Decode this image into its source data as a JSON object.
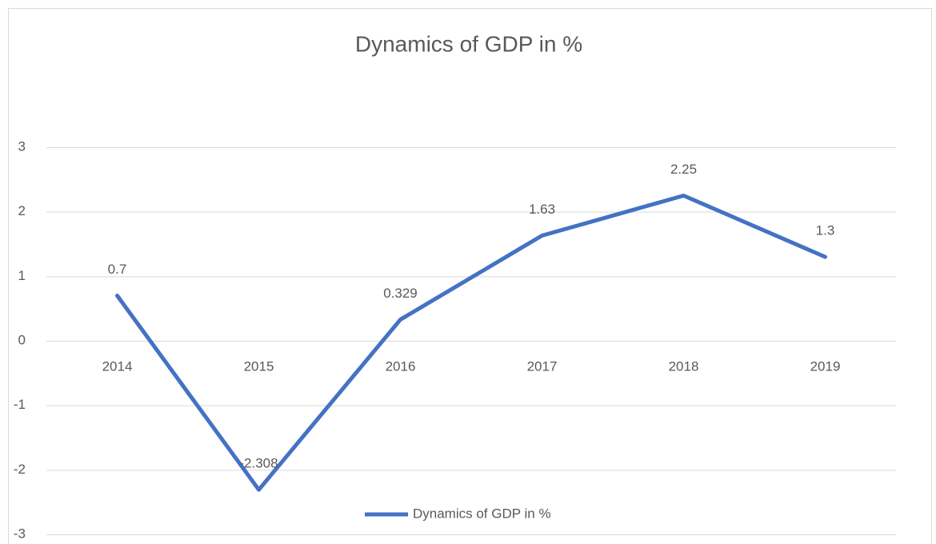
{
  "chart_data": {
    "type": "line",
    "title": "Dynamics of GDP in %",
    "categories": [
      "2014",
      "2015",
      "2016",
      "2017",
      "2018",
      "2019"
    ],
    "series": [
      {
        "name": "Dynamics of GDP in %",
        "color": "#4472c4",
        "values": [
          0.7,
          -2.308,
          0.329,
          1.63,
          2.25,
          1.3
        ]
      }
    ],
    "ylim": [
      -3,
      3
    ],
    "yticks": [
      -3,
      -2,
      -1,
      0,
      1,
      2,
      3
    ],
    "grid": true,
    "legend": "bottom"
  }
}
